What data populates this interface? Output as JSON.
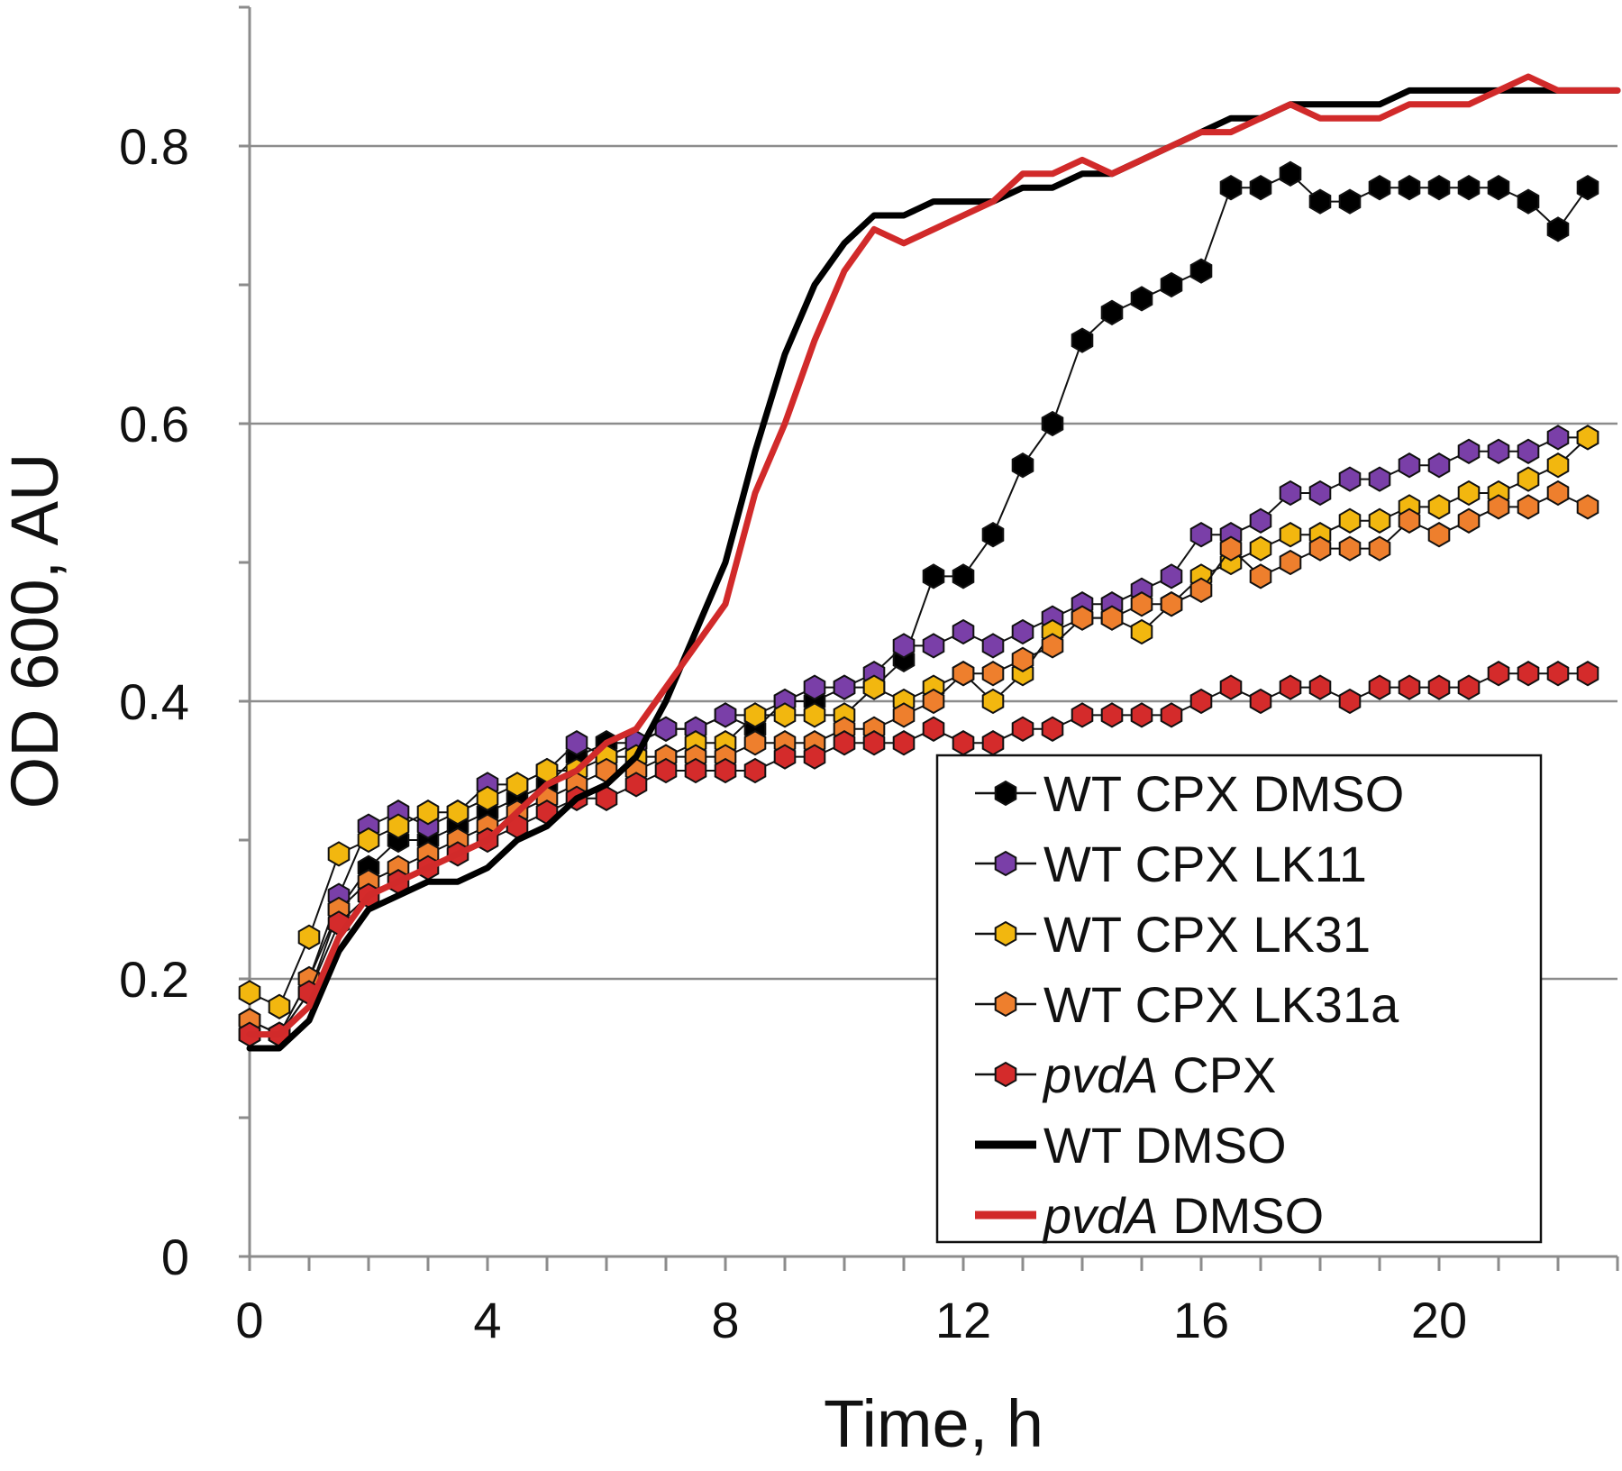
{
  "chart_data": {
    "type": "line",
    "title": "",
    "xlabel": "Time, h",
    "ylabel": "OD 600, AU",
    "xlim": [
      0,
      23
    ],
    "ylim": [
      0,
      0.9
    ],
    "x_major_ticks": [
      0,
      4,
      8,
      12,
      16,
      20
    ],
    "x_tick_labels": [
      "0",
      "4",
      "8",
      "12",
      "16",
      "20"
    ],
    "y_major_ticks": [
      0,
      0.2,
      0.4,
      0.6,
      0.8
    ],
    "y_tick_labels": [
      "0",
      "0.2",
      "0.4",
      "0.6",
      "0.8"
    ],
    "grid": "horizontal",
    "legend_position": "bottom-right",
    "series": [
      {
        "name": "WT CPX DMSO",
        "legend_prefix": "WT CPX DMSO",
        "legend_italic": "",
        "legend_suffix": "",
        "style": "markers",
        "color": "#000000",
        "x": [
          0,
          0.5,
          1,
          1.5,
          2,
          2.5,
          3,
          3.5,
          4,
          4.5,
          5,
          5.5,
          6,
          6.5,
          7,
          7.5,
          8,
          8.5,
          9,
          9.5,
          10,
          10.5,
          11,
          11.5,
          12,
          12.5,
          13,
          13.5,
          14,
          14.5,
          15,
          15.5,
          16,
          16.5,
          17,
          17.5,
          18,
          18.5,
          19,
          19.5,
          20,
          20.5,
          21,
          21.5,
          22,
          22.5
        ],
        "y": [
          0.16,
          0.16,
          0.19,
          0.25,
          0.28,
          0.3,
          0.3,
          0.31,
          0.32,
          0.33,
          0.34,
          0.36,
          0.37,
          0.37,
          0.38,
          0.38,
          0.39,
          0.38,
          0.4,
          0.4,
          0.41,
          0.41,
          0.43,
          0.49,
          0.49,
          0.52,
          0.57,
          0.6,
          0.66,
          0.68,
          0.69,
          0.7,
          0.71,
          0.77,
          0.77,
          0.78,
          0.76,
          0.76,
          0.77,
          0.77,
          0.77,
          0.77,
          0.77,
          0.76,
          0.74,
          0.77
        ]
      },
      {
        "name": "WT CPX LK11",
        "legend_prefix": "WT CPX LK11",
        "legend_italic": "",
        "legend_suffix": "",
        "style": "markers",
        "color": "#7a3fa8",
        "x": [
          0,
          0.5,
          1,
          1.5,
          2,
          2.5,
          3,
          3.5,
          4,
          4.5,
          5,
          5.5,
          6,
          6.5,
          7,
          7.5,
          8,
          8.5,
          9,
          9.5,
          10,
          10.5,
          11,
          11.5,
          12,
          12.5,
          13,
          13.5,
          14,
          14.5,
          15,
          15.5,
          16,
          16.5,
          17,
          17.5,
          18,
          18.5,
          19,
          19.5,
          20,
          20.5,
          21,
          21.5,
          22,
          22.5
        ],
        "y": [
          0.17,
          0.16,
          0.2,
          0.26,
          0.31,
          0.32,
          0.31,
          0.32,
          0.34,
          0.34,
          0.35,
          0.37,
          0.36,
          0.37,
          0.38,
          0.38,
          0.39,
          0.39,
          0.4,
          0.41,
          0.41,
          0.42,
          0.44,
          0.44,
          0.45,
          0.44,
          0.45,
          0.46,
          0.47,
          0.47,
          0.48,
          0.49,
          0.52,
          0.52,
          0.53,
          0.55,
          0.55,
          0.56,
          0.56,
          0.57,
          0.57,
          0.58,
          0.58,
          0.58,
          0.59,
          0.59
        ]
      },
      {
        "name": "WT CPX LK31",
        "legend_prefix": "WT CPX LK31",
        "legend_italic": "",
        "legend_suffix": "",
        "style": "markers",
        "color": "#f2b70f",
        "x": [
          0,
          0.5,
          1,
          1.5,
          2,
          2.5,
          3,
          3.5,
          4,
          4.5,
          5,
          5.5,
          6,
          6.5,
          7,
          7.5,
          8,
          8.5,
          9,
          9.5,
          10,
          10.5,
          11,
          11.5,
          12,
          12.5,
          13,
          13.5,
          14,
          14.5,
          15,
          15.5,
          16,
          16.5,
          17,
          17.5,
          18,
          18.5,
          19,
          19.5,
          20,
          20.5,
          21,
          21.5,
          22,
          22.5
        ],
        "y": [
          0.19,
          0.18,
          0.23,
          0.29,
          0.3,
          0.31,
          0.32,
          0.32,
          0.33,
          0.34,
          0.35,
          0.35,
          0.36,
          0.36,
          0.36,
          0.37,
          0.37,
          0.39,
          0.39,
          0.39,
          0.39,
          0.41,
          0.4,
          0.41,
          0.42,
          0.4,
          0.42,
          0.45,
          0.46,
          0.46,
          0.45,
          0.47,
          0.49,
          0.5,
          0.51,
          0.52,
          0.52,
          0.53,
          0.53,
          0.54,
          0.54,
          0.55,
          0.55,
          0.56,
          0.57,
          0.59
        ]
      },
      {
        "name": "WT CPX LK31a",
        "legend_prefix": "WT CPX LK31a",
        "legend_italic": "",
        "legend_suffix": "",
        "style": "markers",
        "color": "#ee7f2d",
        "x": [
          0,
          0.5,
          1,
          1.5,
          2,
          2.5,
          3,
          3.5,
          4,
          4.5,
          5,
          5.5,
          6,
          6.5,
          7,
          7.5,
          8,
          8.5,
          9,
          9.5,
          10,
          10.5,
          11,
          11.5,
          12,
          12.5,
          13,
          13.5,
          14,
          14.5,
          15,
          15.5,
          16,
          16.5,
          17,
          17.5,
          18,
          18.5,
          19,
          19.5,
          20,
          20.5,
          21,
          21.5,
          22,
          22.5
        ],
        "y": [
          0.17,
          0.16,
          0.2,
          0.25,
          0.27,
          0.28,
          0.29,
          0.3,
          0.31,
          0.32,
          0.33,
          0.34,
          0.35,
          0.35,
          0.36,
          0.36,
          0.36,
          0.37,
          0.37,
          0.37,
          0.38,
          0.38,
          0.39,
          0.4,
          0.42,
          0.42,
          0.43,
          0.44,
          0.46,
          0.46,
          0.47,
          0.47,
          0.48,
          0.51,
          0.49,
          0.5,
          0.51,
          0.51,
          0.51,
          0.53,
          0.52,
          0.53,
          0.54,
          0.54,
          0.55,
          0.54
        ]
      },
      {
        "name": "pvdA CPX",
        "legend_prefix": "",
        "legend_italic": "pvdA",
        "legend_suffix": " CPX",
        "style": "markers",
        "color": "#d42b2b",
        "x": [
          0,
          0.5,
          1,
          1.5,
          2,
          2.5,
          3,
          3.5,
          4,
          4.5,
          5,
          5.5,
          6,
          6.5,
          7,
          7.5,
          8,
          8.5,
          9,
          9.5,
          10,
          10.5,
          11,
          11.5,
          12,
          12.5,
          13,
          13.5,
          14,
          14.5,
          15,
          15.5,
          16,
          16.5,
          17,
          17.5,
          18,
          18.5,
          19,
          19.5,
          20,
          20.5,
          21,
          21.5,
          22,
          22.5
        ],
        "y": [
          0.16,
          0.16,
          0.19,
          0.24,
          0.26,
          0.27,
          0.28,
          0.29,
          0.3,
          0.31,
          0.32,
          0.33,
          0.33,
          0.34,
          0.35,
          0.35,
          0.35,
          0.35,
          0.36,
          0.36,
          0.37,
          0.37,
          0.37,
          0.38,
          0.37,
          0.37,
          0.38,
          0.38,
          0.39,
          0.39,
          0.39,
          0.39,
          0.4,
          0.41,
          0.4,
          0.41,
          0.41,
          0.4,
          0.41,
          0.41,
          0.41,
          0.41,
          0.42,
          0.42,
          0.42,
          0.42
        ]
      },
      {
        "name": "WT DMSO",
        "legend_prefix": "WT DMSO",
        "legend_italic": "",
        "legend_suffix": "",
        "style": "line",
        "color": "#000000",
        "x": [
          0,
          0.5,
          1,
          1.5,
          2,
          2.5,
          3,
          3.5,
          4,
          4.5,
          5,
          5.5,
          6,
          6.5,
          7,
          7.5,
          8,
          8.5,
          9,
          9.5,
          10,
          10.5,
          11,
          11.5,
          12,
          12.5,
          13,
          13.5,
          14,
          14.5,
          15,
          15.5,
          16,
          16.5,
          17,
          17.5,
          18,
          18.5,
          19,
          19.5,
          20,
          20.5,
          21,
          21.5,
          22,
          22.5,
          23
        ],
        "y": [
          0.15,
          0.15,
          0.17,
          0.22,
          0.25,
          0.26,
          0.27,
          0.27,
          0.28,
          0.3,
          0.31,
          0.33,
          0.34,
          0.36,
          0.4,
          0.45,
          0.5,
          0.58,
          0.65,
          0.7,
          0.73,
          0.75,
          0.75,
          0.76,
          0.76,
          0.76,
          0.77,
          0.77,
          0.78,
          0.78,
          0.79,
          0.8,
          0.81,
          0.82,
          0.82,
          0.83,
          0.83,
          0.83,
          0.83,
          0.84,
          0.84,
          0.84,
          0.84,
          0.84,
          0.84,
          0.84,
          0.84
        ]
      },
      {
        "name": "pvdA DMSO",
        "legend_prefix": "",
        "legend_italic": "pvdA",
        "legend_suffix": " DMSO",
        "style": "line",
        "color": "#d12a2a",
        "x": [
          0,
          0.5,
          1,
          1.5,
          2,
          2.5,
          3,
          3.5,
          4,
          4.5,
          5,
          5.5,
          6,
          6.5,
          7,
          7.5,
          8,
          8.5,
          9,
          9.5,
          10,
          10.5,
          11,
          11.5,
          12,
          12.5,
          13,
          13.5,
          14,
          14.5,
          15,
          15.5,
          16,
          16.5,
          17,
          17.5,
          18,
          18.5,
          19,
          19.5,
          20,
          20.5,
          21,
          21.5,
          22,
          22.5,
          23
        ],
        "y": [
          0.16,
          0.16,
          0.18,
          0.23,
          0.26,
          0.27,
          0.28,
          0.29,
          0.3,
          0.32,
          0.34,
          0.35,
          0.37,
          0.38,
          0.41,
          0.44,
          0.47,
          0.55,
          0.6,
          0.66,
          0.71,
          0.74,
          0.73,
          0.74,
          0.75,
          0.76,
          0.78,
          0.78,
          0.79,
          0.78,
          0.79,
          0.8,
          0.81,
          0.81,
          0.82,
          0.83,
          0.82,
          0.82,
          0.82,
          0.83,
          0.83,
          0.83,
          0.84,
          0.85,
          0.84,
          0.84,
          0.84
        ]
      }
    ]
  }
}
